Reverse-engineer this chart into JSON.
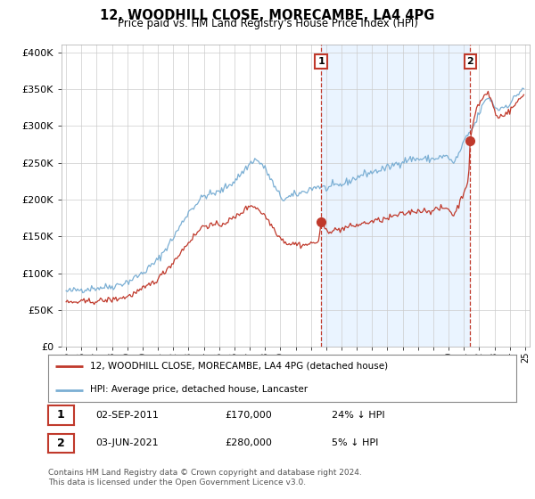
{
  "title": "12, WOODHILL CLOSE, MORECAMBE, LA4 4PG",
  "subtitle": "Price paid vs. HM Land Registry's House Price Index (HPI)",
  "ylabel_ticks": [
    "£0",
    "£50K",
    "£100K",
    "£150K",
    "£200K",
    "£250K",
    "£300K",
    "£350K",
    "£400K"
  ],
  "ytick_values": [
    0,
    50000,
    100000,
    150000,
    200000,
    250000,
    300000,
    350000,
    400000
  ],
  "ylim": [
    0,
    410000
  ],
  "xlim_start": 1994.7,
  "xlim_end": 2025.3,
  "hpi_color": "#7bafd4",
  "sold_color": "#c0392b",
  "fill_color": "#ddeeff",
  "marker1_date": 2011.67,
  "marker2_date": 2021.42,
  "marker1_value": 170000,
  "marker2_value": 280000,
  "legend_sold_label": "12, WOODHILL CLOSE, MORECAMBE, LA4 4PG (detached house)",
  "legend_hpi_label": "HPI: Average price, detached house, Lancaster",
  "table_row1": [
    "1",
    "02-SEP-2011",
    "£170,000",
    "24% ↓ HPI"
  ],
  "table_row2": [
    "2",
    "03-JUN-2021",
    "£280,000",
    "5% ↓ HPI"
  ],
  "footnote": "Contains HM Land Registry data © Crown copyright and database right 2024.\nThis data is licensed under the Open Government Licence v3.0.",
  "background_color": "#ffffff",
  "grid_color": "#cccccc"
}
